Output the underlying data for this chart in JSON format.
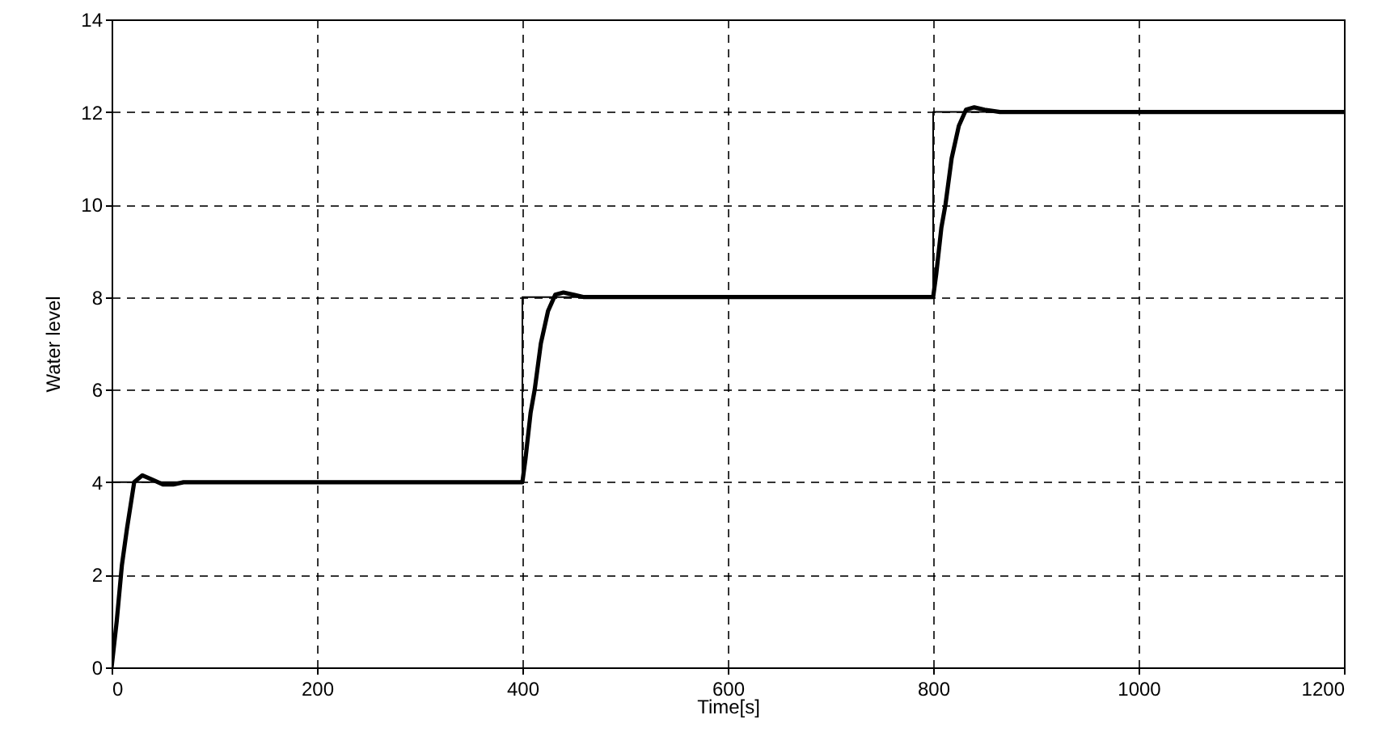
{
  "chart_data": {
    "type": "line",
    "xlabel": "Time[s]",
    "ylabel": "Water level",
    "xlim": [
      0,
      1200
    ],
    "ylim": [
      0,
      14
    ],
    "xticks": [
      0,
      200,
      400,
      600,
      800,
      1000,
      1200
    ],
    "yticks": [
      0,
      2,
      4,
      6,
      8,
      10,
      12,
      14
    ],
    "grid": true,
    "series": [
      {
        "color": "#000000",
        "x": [
          0,
          0,
          400,
          400,
          800,
          800,
          1200
        ],
        "values": [
          0,
          4,
          4,
          8,
          8,
          12,
          12
        ]
      },
      {
        "color": "#000000",
        "x": [
          0,
          5,
          10,
          15,
          22,
          30,
          40,
          50,
          60,
          70,
          400,
          403,
          408,
          412,
          418,
          425,
          432,
          440,
          450,
          460,
          800,
          803,
          808,
          812,
          818,
          825,
          832,
          840,
          850,
          865,
          1200
        ],
        "values": [
          0,
          1.0,
          2.2,
          3.0,
          4.0,
          4.15,
          4.05,
          3.95,
          3.95,
          4.0,
          4.0,
          4.5,
          5.5,
          6.0,
          7.0,
          7.7,
          8.05,
          8.1,
          8.05,
          8.0,
          8.0,
          8.5,
          9.5,
          10,
          11,
          11.7,
          12.05,
          12.1,
          12.05,
          12.0,
          12.0
        ]
      }
    ]
  }
}
